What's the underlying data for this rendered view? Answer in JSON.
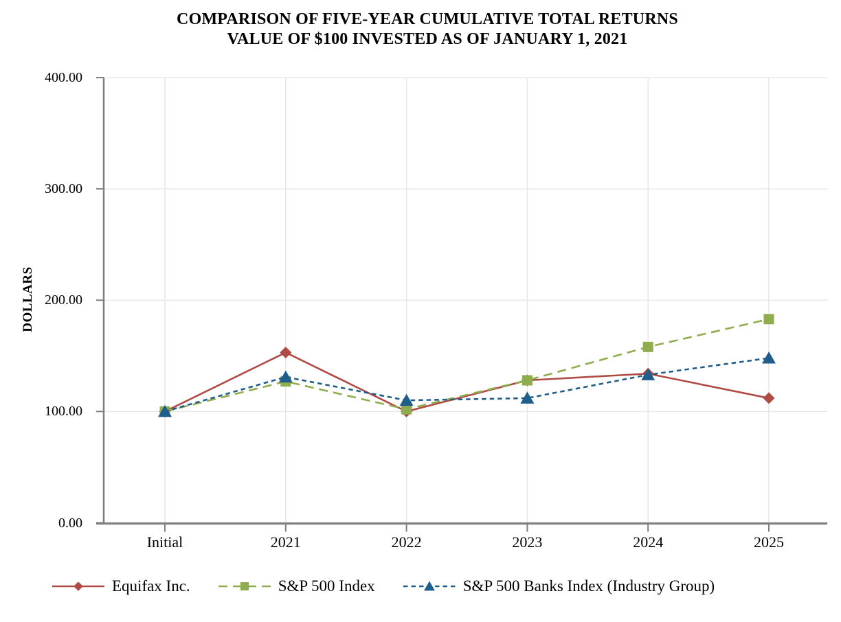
{
  "title": {
    "line1": "COMPARISON OF FIVE-YEAR CUMULATIVE TOTAL RETURNS",
    "line2": "VALUE OF $100 INVESTED AS OF JANUARY 1, 2021"
  },
  "chart_data": {
    "type": "line",
    "title": "COMPARISON OF FIVE-YEAR CUMULATIVE TOTAL RETURNS — VALUE OF $100 INVESTED AS OF JANUARY 1, 2021",
    "categories": [
      "Initial",
      "2021",
      "2022",
      "2023",
      "2024",
      "2025"
    ],
    "series": [
      {
        "name": "Equifax Inc.",
        "values": [
          100,
          153,
          100,
          128,
          134,
          112
        ],
        "color": "#AF4A44",
        "marker": "diamond",
        "dash": "solid"
      },
      {
        "name": "S&P 500 Index",
        "values": [
          100,
          127,
          102,
          128,
          158,
          183
        ],
        "color": "#8FAC4F",
        "marker": "square",
        "dash": "long-dash"
      },
      {
        "name": "S&P 500 Banks Index (Industry Group)",
        "values": [
          100,
          131,
          110,
          112,
          133,
          148
        ],
        "color": "#1F5D8B",
        "marker": "triangle",
        "dash": "dash"
      }
    ],
    "xlabel": "",
    "ylabel": "DOLLARS",
    "ylim": [
      0,
      400
    ],
    "y_ticks": [
      0,
      100,
      200,
      300,
      400
    ],
    "y_tick_labels": [
      "0.00",
      "100.00",
      "200.00",
      "300.00",
      "400.00"
    ],
    "grid": true,
    "legend_position": "bottom",
    "colors": {
      "gridline": "#E8E8E8",
      "axis": "#7F7F7F",
      "text": "#000000"
    }
  }
}
